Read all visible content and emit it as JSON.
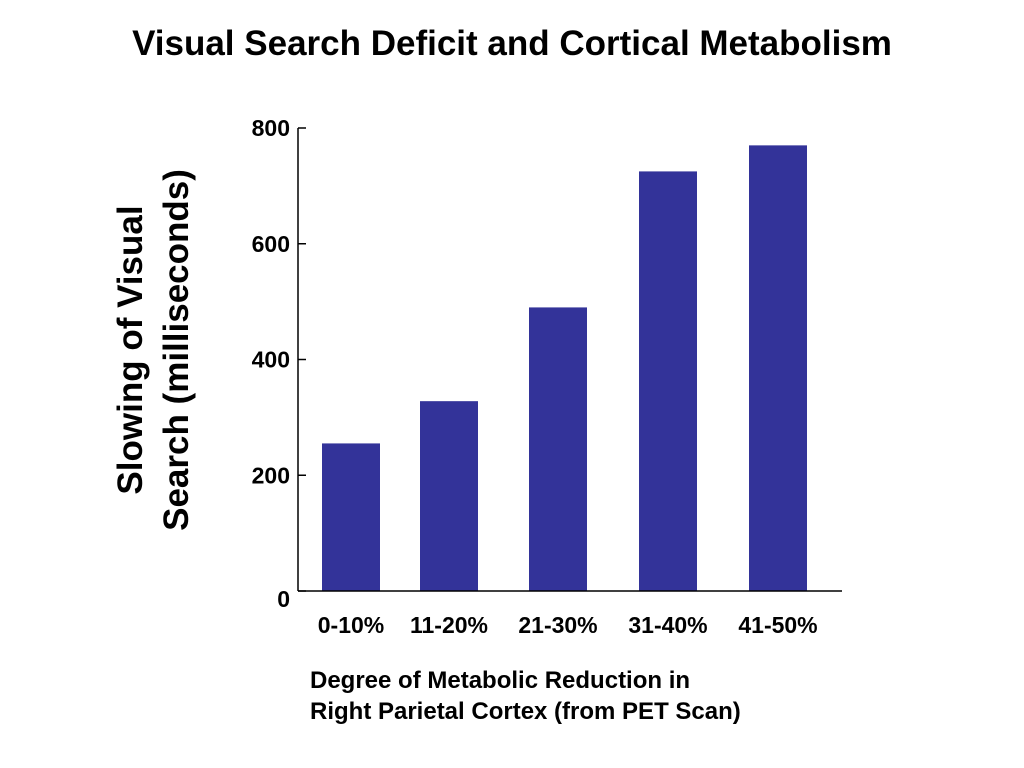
{
  "chart_data": {
    "type": "bar",
    "title": "Visual Search Deficit and Cortical Metabolism",
    "ylabel_lines": [
      "Slowing of Visual",
      "Search (milliseconds)"
    ],
    "xlabel_lines": [
      "Degree of Metabolic Reduction in",
      "Right Parietal Cortex (from PET Scan)"
    ],
    "categories": [
      "0-10%",
      "11-20%",
      "21-30%",
      "31-40%",
      "41-50%"
    ],
    "values": [
      255,
      328,
      490,
      725,
      770
    ],
    "ylim": [
      0,
      800
    ],
    "yticks": [
      0,
      200,
      400,
      600,
      800
    ],
    "grid": false,
    "bar_color": "#333399"
  }
}
